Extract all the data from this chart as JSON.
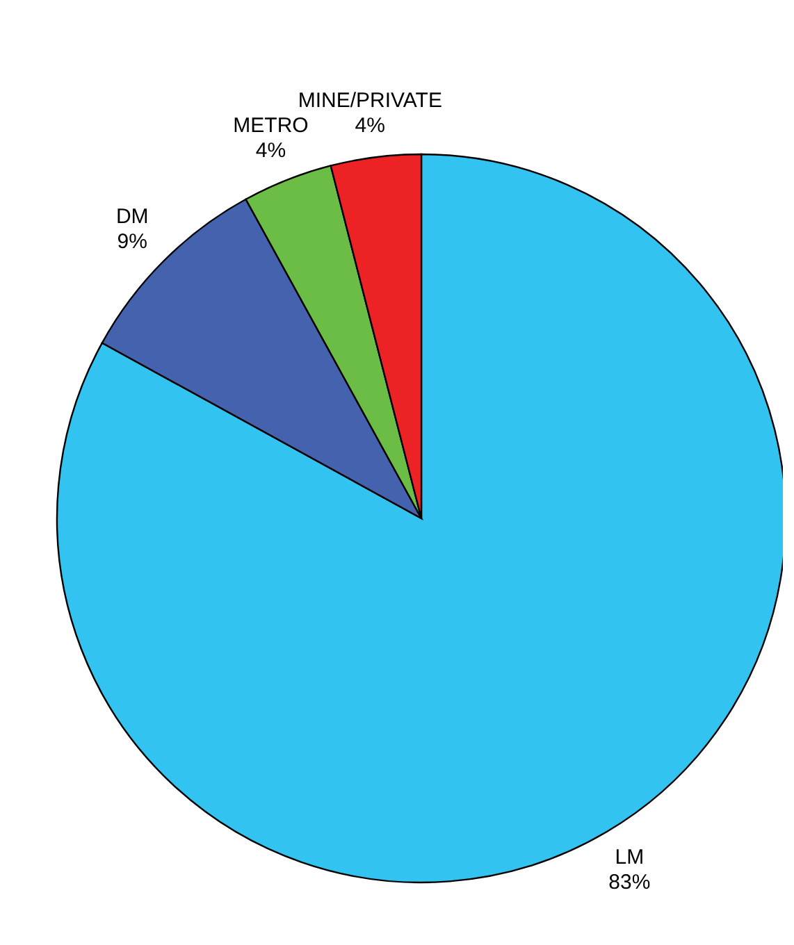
{
  "chart_data": {
    "type": "pie",
    "categories": [
      "LM",
      "DM",
      "METRO",
      "MINE/PRIVATE"
    ],
    "values": [
      83,
      9,
      4,
      4
    ],
    "colors": [
      "#33c3f0",
      "#4462ae",
      "#6bbd45",
      "#ed2224"
    ],
    "value_labels": [
      "83%",
      "9%",
      "4%",
      "4%"
    ],
    "legend": false
  }
}
